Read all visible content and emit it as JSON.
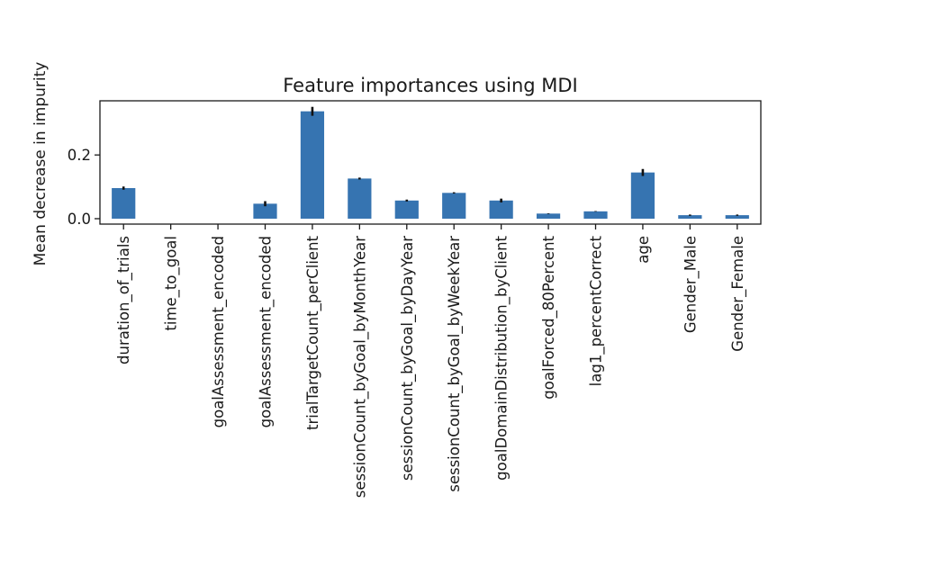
{
  "chart_data": {
    "type": "bar",
    "title": "Feature importances using MDI",
    "xlabel": "",
    "ylabel": "Mean decrease in impurity",
    "categories": [
      "duration_of_trials",
      "time_to_goal",
      "goalAssessment_encoded",
      "goalAssessment_encoded",
      "trialTargetCount_perClient",
      "sessionCount_byGoal_byMonthYear",
      "sessionCount_byGoal_byDayYear",
      "sessionCount_byGoal_byWeekYear",
      "goalDomainDistribution_byClient",
      "goalForced_80Percent",
      "lag1_percentCorrect",
      "age",
      "Gender_Male",
      "Gender_Female"
    ],
    "values": [
      0.096,
      0.0,
      0.0,
      0.047,
      0.337,
      0.126,
      0.057,
      0.081,
      0.057,
      0.016,
      0.023,
      0.145,
      0.011,
      0.011
    ],
    "errors": [
      0.005,
      0.0,
      0.0,
      0.008,
      0.014,
      0.003,
      0.003,
      0.002,
      0.006,
      0.001,
      0.001,
      0.011,
      0.002,
      0.002
    ],
    "yticks": [
      0.0,
      0.2
    ],
    "ytick_labels": [
      "0.0",
      "0.2"
    ],
    "ylim": [
      -0.017,
      0.37
    ],
    "grid": false,
    "bar_color": "#3674b1",
    "error_color": "#111111"
  }
}
